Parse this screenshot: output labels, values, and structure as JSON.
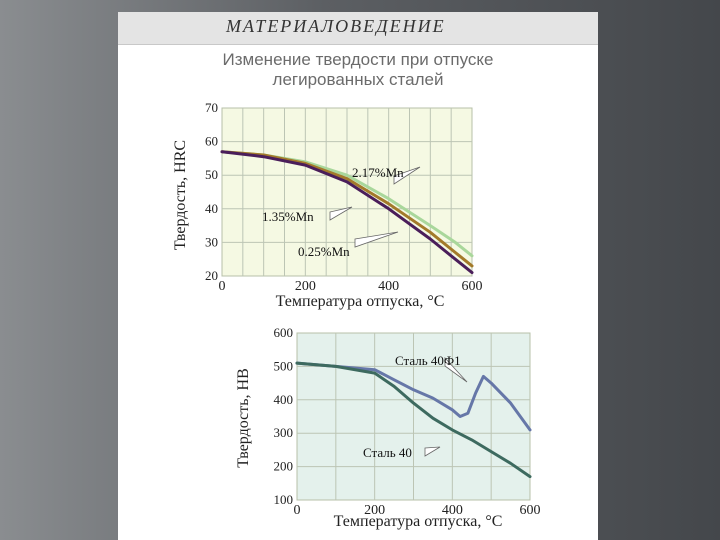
{
  "header": {
    "subject": "МАТЕРИАЛОВЕДЕНИЕ",
    "title_line1": "Изменение твердости при отпуске",
    "title_line2": "легированных сталей"
  },
  "colors": {
    "panel1_background": "#f5f9e3",
    "panel2_background": "#e4f1ec",
    "grid": "#bcc5b4"
  },
  "chart_data": [
    {
      "type": "line",
      "xlabel": "Температура отпуска, °C",
      "ylabel": "Твердость, HRC",
      "xlim": [
        0,
        600
      ],
      "ylim": [
        20,
        70
      ],
      "x_ticks": [
        "0",
        "200",
        "400",
        "600"
      ],
      "y_ticks": [
        "20",
        "30",
        "40",
        "50",
        "60",
        "70"
      ],
      "grid": true,
      "series": [
        {
          "name": "2.17%Mn",
          "color": "#a9d79b",
          "points": [
            [
              0,
              57
            ],
            [
              100,
              56
            ],
            [
              200,
              54
            ],
            [
              300,
              50
            ],
            [
              400,
              43
            ],
            [
              500,
              35
            ],
            [
              560,
              30
            ],
            [
              600,
              26
            ]
          ]
        },
        {
          "name": "1.35%Mn",
          "color": "#a37a2a",
          "points": [
            [
              0,
              57
            ],
            [
              100,
              56
            ],
            [
              200,
              53.5
            ],
            [
              300,
              49
            ],
            [
              400,
              41.5
            ],
            [
              500,
              33
            ],
            [
              560,
              27
            ],
            [
              600,
              23
            ]
          ]
        },
        {
          "name": "0.25%Mn",
          "color": "#4a1e5a",
          "points": [
            [
              0,
              57
            ],
            [
              100,
              55.5
            ],
            [
              200,
              53
            ],
            [
              300,
              48
            ],
            [
              400,
              40
            ],
            [
              500,
              31
            ],
            [
              560,
              25
            ],
            [
              600,
              21
            ]
          ]
        }
      ]
    },
    {
      "type": "line",
      "xlabel": "Температура отпуска, °C",
      "ylabel": "Твердость, HB",
      "xlim": [
        0,
        600
      ],
      "ylim": [
        100,
        600
      ],
      "x_ticks": [
        "0",
        "200",
        "400",
        "600"
      ],
      "y_ticks": [
        "100",
        "200",
        "300",
        "400",
        "500",
        "600"
      ],
      "grid": true,
      "series": [
        {
          "name": "Сталь 40Ф1",
          "color": "#6677a8",
          "points": [
            [
              0,
              510
            ],
            [
              100,
              500
            ],
            [
              200,
              490
            ],
            [
              250,
              460
            ],
            [
              300,
              430
            ],
            [
              350,
              405
            ],
            [
              400,
              370
            ],
            [
              420,
              350
            ],
            [
              440,
              360
            ],
            [
              460,
              420
            ],
            [
              480,
              470
            ],
            [
              500,
              450
            ],
            [
              550,
              390
            ],
            [
              600,
              310
            ]
          ]
        },
        {
          "name": "Сталь 40",
          "color": "#3d6a5f",
          "points": [
            [
              0,
              510
            ],
            [
              100,
              500
            ],
            [
              200,
              480
            ],
            [
              250,
              440
            ],
            [
              300,
              390
            ],
            [
              350,
              345
            ],
            [
              400,
              310
            ],
            [
              450,
              280
            ],
            [
              500,
              245
            ],
            [
              550,
              210
            ],
            [
              600,
              170
            ]
          ]
        }
      ]
    }
  ]
}
